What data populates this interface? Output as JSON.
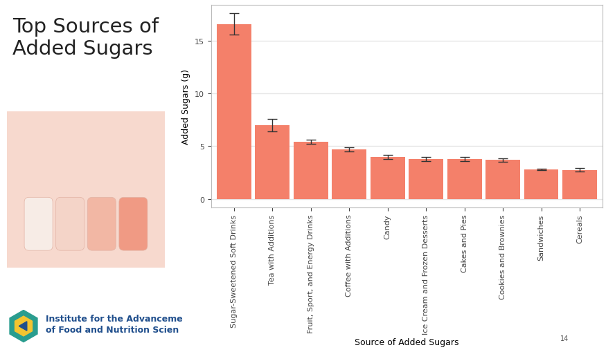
{
  "chart_data": {
    "type": "bar",
    "title": "Top Sources of Added Sugars",
    "x_label": "Source of Added Sugars",
    "y_label": "Added Sugars (g)",
    "categories": [
      "Sugar-Sweetened Soft Drinks",
      "Tea with Additions",
      "Fruit, Sport, and Energy Drinks",
      "Coffee with Additions",
      "Candy",
      "Ice Cream and Frozen Desserts",
      "Cakes and Pies",
      "Cookies and Brownies",
      "Sandwiches",
      "Cereals"
    ],
    "values": [
      16.6,
      7.0,
      5.4,
      4.7,
      4.0,
      3.8,
      3.8,
      3.7,
      2.8,
      2.75
    ],
    "errors": [
      1.0,
      0.6,
      0.2,
      0.2,
      0.2,
      0.2,
      0.2,
      0.15,
      0.05,
      0.15
    ],
    "color": "#f4806a",
    "ylim": [
      -0.8,
      18.4
    ],
    "yticks": [
      0,
      5,
      10,
      15
    ],
    "grid": true,
    "annotations": [
      "Institute for the Advanceme",
      "of Food and Nutrition Scien",
      "14"
    ]
  }
}
